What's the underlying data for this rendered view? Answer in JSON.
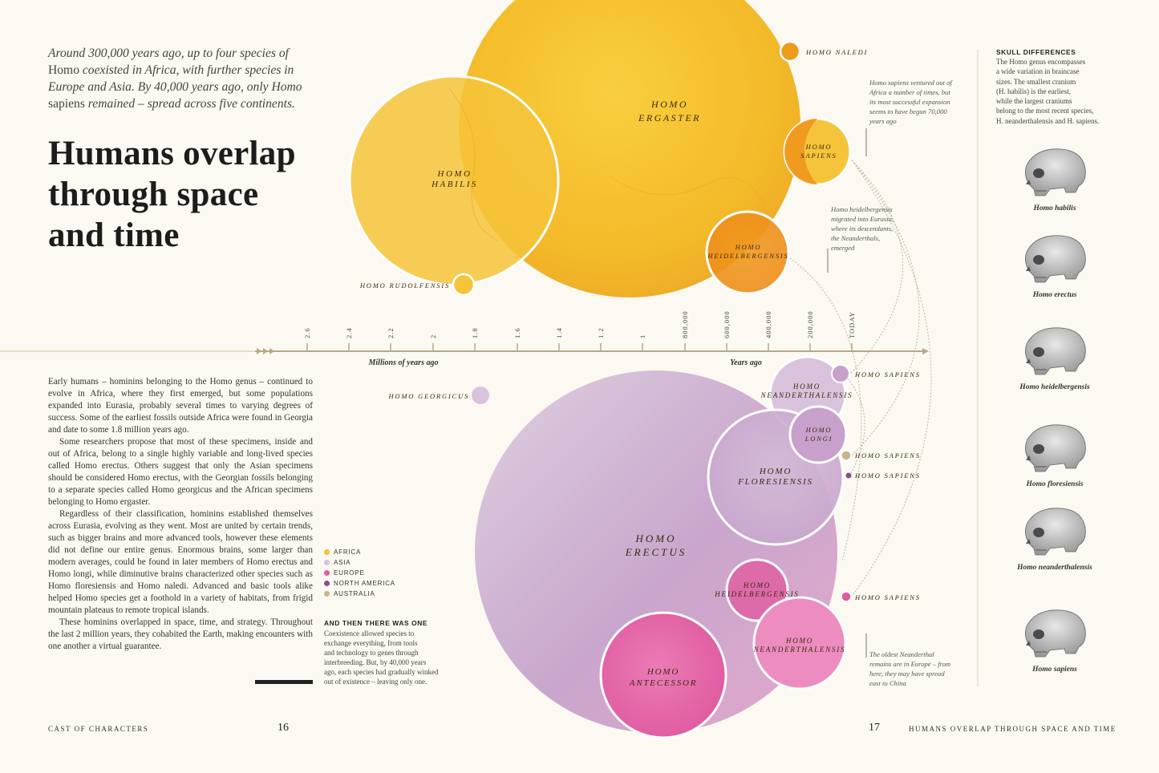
{
  "intro_text": {
    "line1": "Around 300,000 years ago, up to four species of",
    "line2a": "Homo",
    "line2b": " coexisted in Africa, with further species in",
    "line3": "Europe and Asia. By 40,000 years ago, only Homo",
    "line4a": "sapiens",
    "line4b": " remained – spread across five continents."
  },
  "title": {
    "line1": "Humans overlap",
    "line2": "through space",
    "line3": "and time"
  },
  "body_paragraphs": [
    "Early humans – hominins belonging to the Homo genus – continued to evolve in Africa, where they first emerged, but some populations expanded into Eurasia, probably several times to varying degrees of success. Some of the earliest fossils outside Africa were found in Georgia and date to some 1.8 million years ago.",
    "Some researchers propose that most of these specimens, inside and out of Africa, belong to a single highly variable and long-lived species called Homo erectus. Others suggest that only the Asian specimens should be considered Homo erectus, with the Georgian fossils belonging to a separate species called Homo georgicus and the African specimens belonging to Homo ergaster.",
    "Regardless of their classification, hominins established themselves across Eurasia, evolving as they went. Most are united by certain trends, such as bigger brains and more advanced tools, however these elements did not define our entire genus. Enormous brains, some larger than modern averages, could be found in later members of Homo erectus and Homo longi, while diminutive brains characterized other species such as Homo floresiensis and Homo naledi. Advanced and basic tools alike helped Homo species get a foothold in a variety of habitats, from frigid mountain plateaus to remote tropical islands.",
    "These hominins overlapped in space, time, and strategy. Throughout the last 2 million years, they cohabited the Earth, making encounters with one another a virtual guarantee."
  ],
  "legend": [
    {
      "label": "AFRICA",
      "color": "#f4c13d"
    },
    {
      "label": "ASIA",
      "color": "#d9c3dc"
    },
    {
      "label": "EUROPE",
      "color": "#e05aa0"
    },
    {
      "label": "NORTH AMERICA",
      "color": "#8a4f8e"
    },
    {
      "label": "AUSTRALIA",
      "color": "#c9b48a"
    }
  ],
  "and_then": {
    "heading": "AND THEN THERE WAS ONE",
    "lines": [
      "Coexistence allowed species to",
      "exchange everything, from tools",
      "and technology to genes through",
      "interbreeding. But, by 40,000 years",
      "ago, each species had gradually winked",
      "out of existence – leaving only one."
    ]
  },
  "timeline": {
    "millions_label": "Millions of years ago",
    "years_label": "Years ago",
    "million_ticks": [
      "2.6",
      "2.4",
      "2.2",
      "2",
      "1.8",
      "1.6",
      "1.4",
      "1.2",
      "1"
    ],
    "year_ticks": [
      "800,000",
      "600,000",
      "400,000",
      "200,000",
      "TODAY"
    ]
  },
  "species_labels": {
    "ergaster": [
      "HOMO",
      "ERGASTER"
    ],
    "habilis": [
      "HOMO",
      "HABILIS"
    ],
    "naledi": "HOMO NALEDI",
    "sapiens_africa": [
      "HOMO",
      "SAPIENS"
    ],
    "heidelbergensis_africa": [
      "HOMO",
      "HEIDELBERGENSIS"
    ],
    "rudolfensis": "HOMO RUDOLFENSIS",
    "georgicus": "HOMO GEORGICUS",
    "erectus": [
      "HOMO",
      "ERECTUS"
    ],
    "neanderthalensis_asia": [
      "HOMO",
      "NEANDERTHALENSIS"
    ],
    "longi": [
      "HOMO",
      "LONGI"
    ],
    "floresiensis": [
      "HOMO",
      "FLORESIENSIS"
    ],
    "heidelbergensis_europe": [
      "HOMO",
      "HEIDELBERGENSIS"
    ],
    "neanderthalensis_europe": [
      "HOMO",
      "NEANDERTHALENSIS"
    ],
    "antecessor": [
      "HOMO",
      "ANTECESSOR"
    ],
    "sapiens_1": "HOMO SAPIENS",
    "sapiens_2": "HOMO SAPIENS",
    "sapiens_3": "HOMO SAPIENS",
    "sapiens_4": "HOMO SAPIENS"
  },
  "annotations": {
    "sapiens": [
      "Homo sapiens ventured out of",
      "Africa a number of times, but",
      "its most successful expansion",
      "seems to have begun 70,000",
      "years ago"
    ],
    "heidelbergensis": [
      "Homo heidelbergensis",
      "migrated into Eurasia,",
      "where its descendants,",
      "the Neanderthals,",
      "emerged"
    ],
    "neanderthal": [
      "The oldest Neanderthal",
      "remains are in Europe – from",
      "here, they may have spread",
      "east to China"
    ]
  },
  "skull_differences": {
    "heading": "SKULL DIFFERENCES",
    "lines": [
      "The Homo genus encompasses",
      "a wide variation in braincase",
      "sizes. The smallest cranium",
      "(H. habilis) is the earliest,",
      "while the largest craniums",
      "belong to the most recent species,",
      "H. neanderthalensis and H. sapiens."
    ],
    "skulls": [
      "Homo habilis",
      "Homo erectus",
      "Homo heidelbergensis",
      "Homo floresiensis",
      "Homo neanderthalensis",
      "Homo sapiens"
    ]
  },
  "footer": {
    "left_text": "CAST OF CHARACTERS",
    "left_page": "16",
    "right_page": "17",
    "right_text": "HUMANS OVERLAP THROUGH SPACE AND TIME"
  }
}
